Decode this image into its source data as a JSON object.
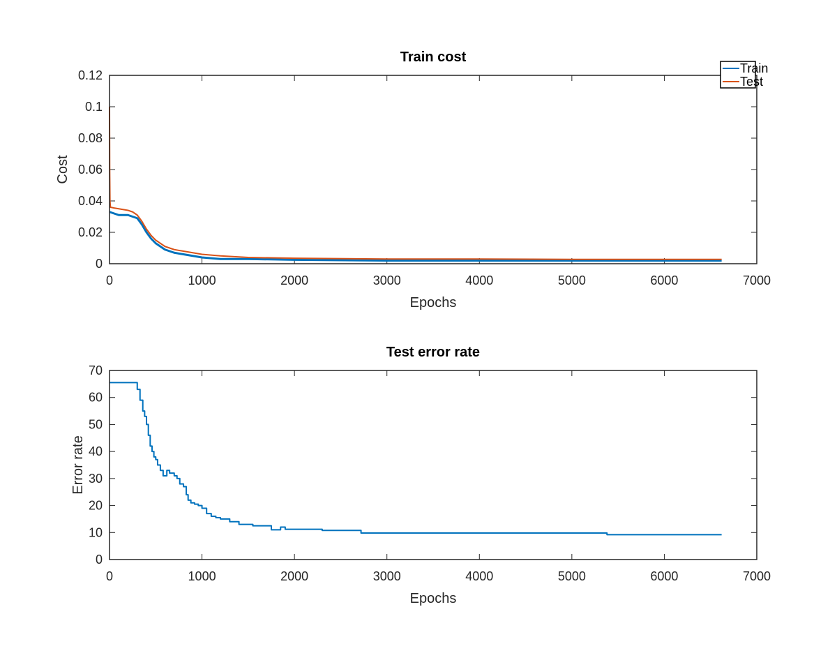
{
  "chart_data": [
    {
      "type": "line",
      "title": "Train cost",
      "xlabel": "Epochs",
      "ylabel": "Cost",
      "xlim": [
        0,
        7000
      ],
      "ylim": [
        0,
        0.12
      ],
      "xticks": [
        0,
        1000,
        2000,
        3000,
        4000,
        5000,
        6000,
        7000
      ],
      "yticks": [
        0,
        0.02,
        0.04,
        0.06,
        0.08,
        0.1,
        0.12
      ],
      "xtick_labels": [
        "0",
        "1000",
        "2000",
        "3000",
        "4000",
        "5000",
        "6000",
        "7000"
      ],
      "ytick_labels": [
        "0",
        "0.02",
        "0.04",
        "0.06",
        "0.08",
        "0.1",
        "0.12"
      ],
      "grid": false,
      "legend": {
        "placement": "top-right",
        "entries": [
          "Train",
          "Test"
        ]
      },
      "series": [
        {
          "name": "Train",
          "color": "#0072BD",
          "x": [
            0,
            50,
            100,
            200,
            300,
            350,
            400,
            450,
            500,
            600,
            700,
            800,
            1000,
            1200,
            1500,
            2000,
            3000,
            4000,
            5000,
            6000,
            6620
          ],
          "y": [
            0.033,
            0.032,
            0.031,
            0.031,
            0.029,
            0.025,
            0.02,
            0.016,
            0.013,
            0.009,
            0.007,
            0.006,
            0.004,
            0.003,
            0.003,
            0.0025,
            0.002,
            0.002,
            0.002,
            0.002,
            0.002
          ]
        },
        {
          "name": "Test",
          "color": "#D95319",
          "x": [
            0,
            2,
            5,
            10,
            50,
            100,
            200,
            250,
            300,
            350,
            400,
            450,
            500,
            600,
            700,
            800,
            1000,
            1200,
            1500,
            2000,
            3000,
            4000,
            5000,
            6000,
            6620
          ],
          "y": [
            0.1,
            0.06,
            0.04,
            0.036,
            0.0355,
            0.035,
            0.034,
            0.033,
            0.031,
            0.027,
            0.022,
            0.018,
            0.015,
            0.011,
            0.009,
            0.008,
            0.006,
            0.005,
            0.004,
            0.0035,
            0.003,
            0.003,
            0.0028,
            0.0028,
            0.0028
          ]
        }
      ]
    },
    {
      "type": "line",
      "title": "Test error rate",
      "xlabel": "Epochs",
      "ylabel": "Error rate",
      "xlim": [
        0,
        7000
      ],
      "ylim": [
        0,
        70
      ],
      "xticks": [
        0,
        1000,
        2000,
        3000,
        4000,
        5000,
        6000,
        7000
      ],
      "yticks": [
        0,
        10,
        20,
        30,
        40,
        50,
        60,
        70
      ],
      "xtick_labels": [
        "0",
        "1000",
        "2000",
        "3000",
        "4000",
        "5000",
        "6000",
        "7000"
      ],
      "ytick_labels": [
        "0",
        "10",
        "20",
        "30",
        "40",
        "50",
        "60",
        "70"
      ],
      "grid": false,
      "series": [
        {
          "color": "#0072BD",
          "x": [
            0,
            260,
            300,
            330,
            360,
            380,
            400,
            420,
            440,
            460,
            480,
            500,
            520,
            550,
            580,
            600,
            620,
            650,
            680,
            700,
            730,
            760,
            800,
            830,
            850,
            880,
            920,
            960,
            1000,
            1050,
            1100,
            1150,
            1200,
            1300,
            1400,
            1550,
            1750,
            1850,
            1900,
            2300,
            2720,
            5380,
            6620
          ],
          "y": [
            65.5,
            65.5,
            63,
            59,
            55,
            53,
            50,
            46,
            42,
            40,
            38,
            37,
            35,
            33,
            31,
            31,
            33,
            32,
            32,
            31,
            30,
            28,
            27,
            24,
            22,
            21,
            20.5,
            20,
            19,
            17,
            16,
            15.5,
            15,
            14,
            13,
            12.5,
            11,
            12,
            11.2,
            10.8,
            9.8,
            9.2,
            9.2
          ]
        }
      ]
    }
  ]
}
